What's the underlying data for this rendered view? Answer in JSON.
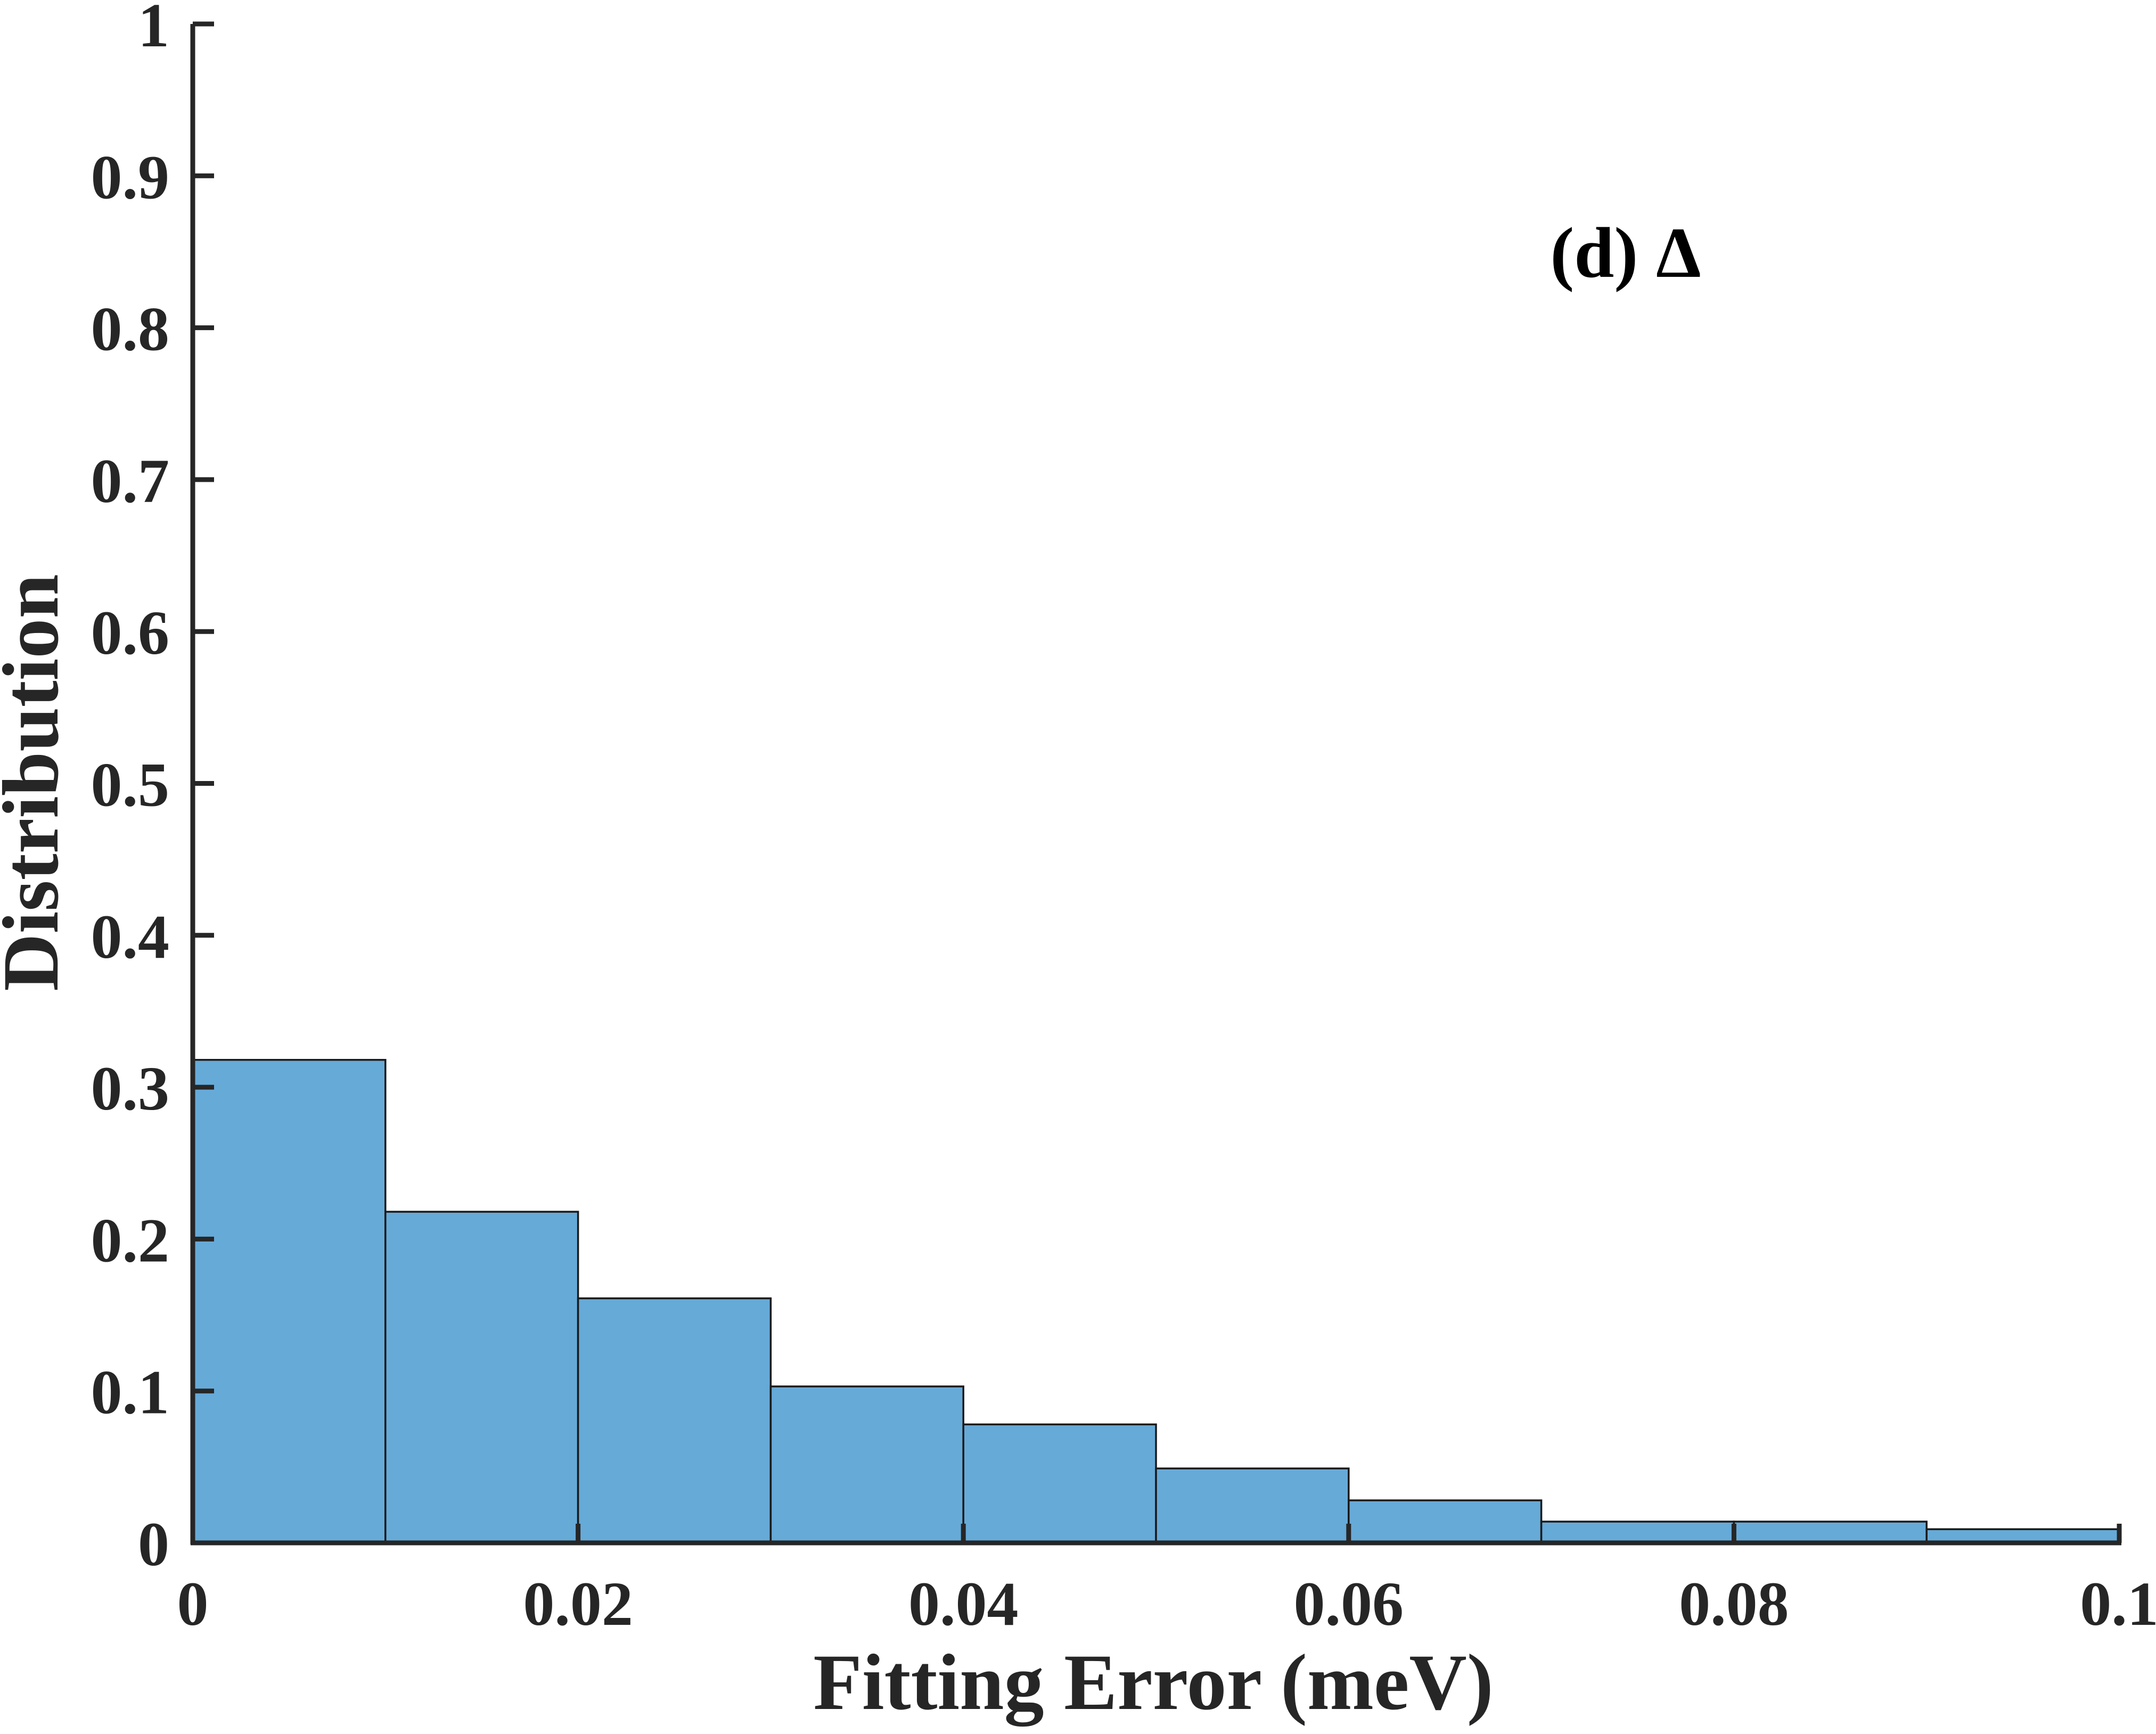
{
  "chart_data": {
    "type": "bar",
    "title": "",
    "annotation": "(d) Δ",
    "xlabel": "Fitting Error (meV)",
    "ylabel": "Distribution",
    "xlim": [
      0,
      0.1
    ],
    "ylim": [
      0,
      1
    ],
    "bin_width": 0.01,
    "bin_edges": [
      0,
      0.01,
      0.02,
      0.03,
      0.04,
      0.05,
      0.06,
      0.07,
      0.08,
      0.09,
      0.1
    ],
    "values": [
      0.318,
      0.218,
      0.161,
      0.103,
      0.078,
      0.049,
      0.028,
      0.014,
      0.014,
      0.009
    ],
    "x_ticks": [
      "0",
      "0.02",
      "0.04",
      "0.06",
      "0.08",
      "0.1"
    ],
    "y_ticks": [
      "0",
      "0.1",
      "0.2",
      "0.3",
      "0.4",
      "0.5",
      "0.6",
      "0.7",
      "0.8",
      "0.9",
      "1"
    ],
    "grid": false,
    "legend": "none",
    "colors": {
      "bar_fill": "#66aad8",
      "bar_edge": "#1a1a1a",
      "axis": "#262626"
    }
  }
}
